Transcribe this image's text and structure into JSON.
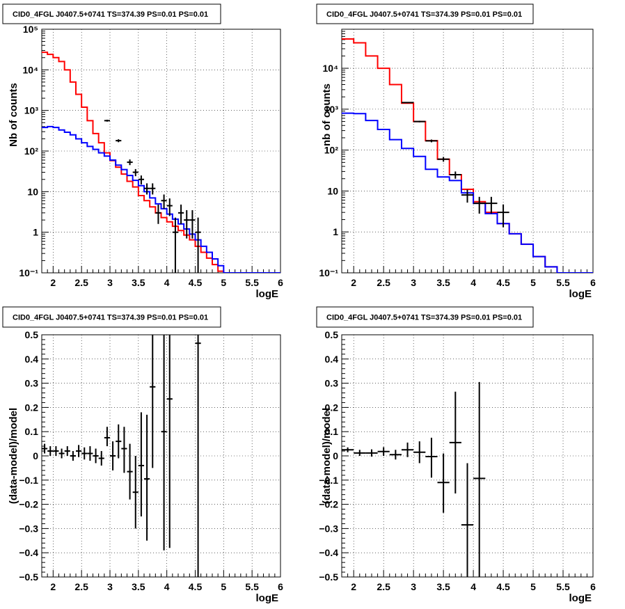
{
  "colors": {
    "model": "#ff0000",
    "background": "#0000ff",
    "data": "#000000"
  },
  "chart_data": [
    {
      "type": "line",
      "scale": "log",
      "title": "CID0_4FGL J0407.5+0741 TS=374.39 PS=0.01 PS=0.01",
      "xlabel": "logE",
      "ylabel": "Nb of counts",
      "xlim": [
        1.8,
        6
      ],
      "ylim": [
        0.1,
        100000
      ],
      "grid": true,
      "x_ticks": [
        "2",
        "2.5",
        "3",
        "3.5",
        "4",
        "4.5",
        "5",
        "5.5",
        "6"
      ],
      "y_ticks": [
        "10⁻¹",
        "1",
        "10",
        "10²",
        "10³",
        "10⁴",
        "10⁵"
      ],
      "bin_edges": [
        1.8,
        1.9,
        2.0,
        2.1,
        2.2,
        2.3,
        2.4,
        2.5,
        2.6,
        2.7,
        2.8,
        2.9,
        3.0,
        3.1,
        3.2,
        3.3,
        3.4,
        3.5,
        3.6,
        3.7,
        3.8,
        3.9,
        4.0,
        4.1,
        4.2,
        4.3,
        4.4,
        4.5,
        4.6,
        4.7,
        4.8,
        4.9,
        5.0,
        5.1,
        5.2,
        5.3,
        5.4,
        5.5,
        5.6,
        5.7,
        5.8,
        5.9,
        6.0
      ],
      "series": [
        {
          "name": "",
          "color": "#ff0000",
          "values": [
            27000,
            24000,
            20000,
            16000,
            10000,
            5000,
            2500,
            1200,
            560,
            270,
            160,
            90,
            58,
            40,
            27,
            18,
            13,
            8,
            6,
            4.2,
            3,
            2.3,
            1.8,
            1.4,
            1.1,
            0.85,
            0.65,
            0.45,
            0.32,
            0.23,
            0.16,
            0.11,
            0.1,
            0.1,
            0.1,
            0.1,
            0.1,
            0.1,
            0.1,
            0.1,
            0.1,
            0.1
          ]
        },
        {
          "name": "",
          "color": "#0000ff",
          "values": [
            380,
            400,
            380,
            330,
            290,
            250,
            200,
            160,
            130,
            110,
            90,
            75,
            60,
            45,
            35,
            25,
            19,
            14,
            10,
            7,
            5,
            3.8,
            2.8,
            2.1,
            1.6,
            1.2,
            0.9,
            0.65,
            0.45,
            0.32,
            0.22,
            0.15,
            0.1,
            0.1,
            0.1,
            0.1,
            0.1,
            0.1,
            0.1,
            0.1,
            0.1,
            0.1
          ]
        }
      ],
      "data_points": [
        {
          "x": 2.95,
          "y": 560,
          "xerr": 0.05,
          "ylo": 530,
          "yhi": 590
        },
        {
          "x": 3.15,
          "y": 180,
          "xerr": 0.05,
          "ylo": 165,
          "yhi": 195
        },
        {
          "x": 3.35,
          "y": 53,
          "xerr": 0.05,
          "ylo": 45,
          "yhi": 62
        },
        {
          "x": 3.45,
          "y": 30,
          "xerr": 0.05,
          "ylo": 24,
          "yhi": 36
        },
        {
          "x": 3.55,
          "y": 20,
          "xerr": 0.05,
          "ylo": 15,
          "yhi": 25
        },
        {
          "x": 3.65,
          "y": 12,
          "xerr": 0.05,
          "ylo": 8.5,
          "yhi": 16
        },
        {
          "x": 3.75,
          "y": 12,
          "xerr": 0.05,
          "ylo": 8.5,
          "yhi": 16
        },
        {
          "x": 3.85,
          "y": 3,
          "xerr": 0.05,
          "ylo": 1.6,
          "yhi": 4.8
        },
        {
          "x": 3.95,
          "y": 6,
          "xerr": 0.05,
          "ylo": 3.8,
          "yhi": 8.5
        },
        {
          "x": 4.05,
          "y": 4.5,
          "xerr": 0.05,
          "ylo": 2.5,
          "yhi": 6.8
        },
        {
          "x": 4.15,
          "y": 1,
          "xerr": 0.05,
          "ylo": 0.1,
          "yhi": 2.3
        },
        {
          "x": 4.25,
          "y": 3,
          "xerr": 0.05,
          "ylo": 1.6,
          "yhi": 4.8
        },
        {
          "x": 4.35,
          "y": 2,
          "xerr": 0.05,
          "ylo": 0.7,
          "yhi": 3.5
        },
        {
          "x": 4.45,
          "y": 2,
          "xerr": 0.05,
          "ylo": 0.7,
          "yhi": 3.5
        },
        {
          "x": 4.55,
          "y": 1,
          "xerr": 0.05,
          "ylo": 0.1,
          "yhi": 2.3
        }
      ]
    },
    {
      "type": "line",
      "scale": "log",
      "title": "CID0_4FGL J0407.5+0741 TS=374.39 PS=0.01 PS=0.01",
      "xlabel": "logE",
      "ylabel": "nb of counts",
      "xlim": [
        1.8,
        6
      ],
      "ylim": [
        0.1,
        90000
      ],
      "grid": true,
      "x_ticks": [
        "2",
        "2.5",
        "3",
        "3.5",
        "4",
        "4.5",
        "5",
        "5.5",
        "6"
      ],
      "y_ticks": [
        "10⁻¹",
        "1",
        "10",
        "10²",
        "10³",
        "10⁴"
      ],
      "bin_edges": [
        1.8,
        2.0,
        2.2,
        2.4,
        2.6,
        2.8,
        3.0,
        3.2,
        3.4,
        3.6,
        3.8,
        4.0,
        4.2,
        4.4,
        4.6,
        4.8,
        5.0,
        5.2,
        5.4,
        5.6,
        5.8,
        6.0
      ],
      "series": [
        {
          "name": "",
          "color": "#ff0000",
          "values": [
            52000,
            42000,
            20000,
            10000,
            4000,
            1400,
            500,
            170,
            60,
            25,
            11,
            5.5,
            3,
            1.6,
            0.9,
            0.5,
            0.25,
            0.14,
            0.1,
            0.1,
            0.1
          ]
        },
        {
          "name": "",
          "color": "#0000ff",
          "values": [
            800,
            780,
            530,
            320,
            180,
            110,
            70,
            34,
            22,
            18,
            9,
            5,
            2.8,
            1.6,
            0.9,
            0.5,
            0.25,
            0.14,
            0.1,
            0.1,
            0.1
          ]
        }
      ],
      "data_points": [
        {
          "x": 2.9,
          "y": 1450,
          "xerr": 0.1,
          "ylo": 1400,
          "yhi": 1500
        },
        {
          "x": 3.1,
          "y": 500,
          "xerr": 0.1,
          "ylo": 478,
          "yhi": 522
        },
        {
          "x": 3.3,
          "y": 168,
          "xerr": 0.1,
          "ylo": 155,
          "yhi": 181
        },
        {
          "x": 3.5,
          "y": 60,
          "xerr": 0.1,
          "ylo": 52,
          "yhi": 68
        },
        {
          "x": 3.7,
          "y": 25,
          "xerr": 0.1,
          "ylo": 20,
          "yhi": 30
        },
        {
          "x": 3.9,
          "y": 8,
          "xerr": 0.1,
          "ylo": 5.2,
          "yhi": 10.8
        },
        {
          "x": 4.1,
          "y": 5,
          "xerr": 0.1,
          "ylo": 2.8,
          "yhi": 7.2
        },
        {
          "x": 4.3,
          "y": 5,
          "xerr": 0.1,
          "ylo": 2.8,
          "yhi": 7.2
        },
        {
          "x": 4.5,
          "y": 3,
          "xerr": 0.1,
          "ylo": 1.3,
          "yhi": 4.7
        }
      ]
    },
    {
      "type": "scatter",
      "scale": "linear",
      "title": "CID0_4FGL J0407.5+0741 TS=374.39 PS=0.01 PS=0.01",
      "xlabel": "logE",
      "ylabel": "(data-model)/model",
      "xlim": [
        1.8,
        6
      ],
      "ylim": [
        -0.5,
        0.5
      ],
      "grid": true,
      "x_ticks": [
        "2",
        "2.5",
        "3",
        "3.5",
        "4",
        "4.5",
        "5",
        "5.5",
        "6"
      ],
      "y_ticks": [
        "−0.5",
        "−0.4",
        "−0.3",
        "−0.2",
        "−0.1",
        "0",
        "0.1",
        "0.2",
        "0.3",
        "0.4",
        "0.5"
      ],
      "data_points": [
        {
          "x": 1.85,
          "y": 0.03,
          "xerr": 0.05,
          "ylo": 0.01,
          "yhi": 0.05
        },
        {
          "x": 1.95,
          "y": 0.02,
          "xerr": 0.05,
          "ylo": 0.0,
          "yhi": 0.04
        },
        {
          "x": 2.05,
          "y": 0.02,
          "xerr": 0.05,
          "ylo": 0.0,
          "yhi": 0.04
        },
        {
          "x": 2.15,
          "y": 0.01,
          "xerr": 0.05,
          "ylo": -0.01,
          "yhi": 0.03
        },
        {
          "x": 2.25,
          "y": 0.02,
          "xerr": 0.05,
          "ylo": 0.0,
          "yhi": 0.04
        },
        {
          "x": 2.35,
          "y": 0.0,
          "xerr": 0.05,
          "ylo": -0.02,
          "yhi": 0.02
        },
        {
          "x": 2.45,
          "y": 0.02,
          "xerr": 0.05,
          "ylo": -0.005,
          "yhi": 0.045
        },
        {
          "x": 2.55,
          "y": 0.01,
          "xerr": 0.05,
          "ylo": -0.015,
          "yhi": 0.035
        },
        {
          "x": 2.65,
          "y": 0.01,
          "xerr": 0.05,
          "ylo": -0.02,
          "yhi": 0.04
        },
        {
          "x": 2.75,
          "y": 0.0,
          "xerr": 0.05,
          "ylo": -0.03,
          "yhi": 0.03
        },
        {
          "x": 2.85,
          "y": -0.01,
          "xerr": 0.05,
          "ylo": -0.04,
          "yhi": 0.02
        },
        {
          "x": 2.95,
          "y": 0.075,
          "xerr": 0.05,
          "ylo": 0.04,
          "yhi": 0.12
        },
        {
          "x": 3.05,
          "y": 0.0,
          "xerr": 0.05,
          "ylo": -0.06,
          "yhi": 0.06
        },
        {
          "x": 3.15,
          "y": 0.06,
          "xerr": 0.05,
          "ylo": -0.01,
          "yhi": 0.13
        },
        {
          "x": 3.25,
          "y": 0.03,
          "xerr": 0.05,
          "ylo": -0.07,
          "yhi": 0.12
        },
        {
          "x": 3.35,
          "y": -0.065,
          "xerr": 0.05,
          "ylo": -0.18,
          "yhi": 0.05
        },
        {
          "x": 3.45,
          "y": -0.15,
          "xerr": 0.05,
          "ylo": -0.3,
          "yhi": 0.0
        },
        {
          "x": 3.55,
          "y": -0.04,
          "xerr": 0.05,
          "ylo": -0.25,
          "yhi": 0.18
        },
        {
          "x": 3.65,
          "y": -0.095,
          "xerr": 0.05,
          "ylo": -0.35,
          "yhi": 0.17
        },
        {
          "x": 3.75,
          "y": 0.285,
          "xerr": 0.05,
          "ylo": -0.05,
          "yhi": 0.5
        },
        {
          "x": 3.95,
          "y": 0.1,
          "xerr": 0.05,
          "ylo": -0.39,
          "yhi": 0.5
        },
        {
          "x": 4.05,
          "y": 0.235,
          "xerr": 0.05,
          "ylo": -0.38,
          "yhi": 0.5
        },
        {
          "x": 4.55,
          "y": 0.465,
          "xerr": 0.05,
          "ylo": -0.5,
          "yhi": 0.5
        }
      ]
    },
    {
      "type": "scatter",
      "scale": "linear",
      "title": "CID0_4FGL J0407.5+0741 TS=374.39 PS=0.01 PS=0.01",
      "xlabel": "logE",
      "ylabel": "(data-model)/model",
      "xlim": [
        1.8,
        6
      ],
      "ylim": [
        -0.5,
        0.5
      ],
      "grid": true,
      "x_ticks": [
        "2",
        "2.5",
        "3",
        "3.5",
        "4",
        "4.5",
        "5",
        "5.5",
        "6"
      ],
      "y_ticks": [
        "−0.5",
        "−0.4",
        "−0.3",
        "−0.2",
        "−0.1",
        "0",
        "0.1",
        "0.2",
        "0.3",
        "0.4",
        "0.5"
      ],
      "data_points": [
        {
          "x": 1.9,
          "y": 0.025,
          "xerr": 0.1,
          "ylo": 0.015,
          "yhi": 0.035
        },
        {
          "x": 2.1,
          "y": 0.012,
          "xerr": 0.1,
          "ylo": 0.0,
          "yhi": 0.025
        },
        {
          "x": 2.3,
          "y": 0.012,
          "xerr": 0.1,
          "ylo": -0.003,
          "yhi": 0.027
        },
        {
          "x": 2.5,
          "y": 0.018,
          "xerr": 0.1,
          "ylo": 0.0,
          "yhi": 0.036
        },
        {
          "x": 2.7,
          "y": 0.005,
          "xerr": 0.1,
          "ylo": -0.015,
          "yhi": 0.025
        },
        {
          "x": 2.9,
          "y": 0.025,
          "xerr": 0.1,
          "ylo": -0.005,
          "yhi": 0.055
        },
        {
          "x": 3.1,
          "y": 0.015,
          "xerr": 0.1,
          "ylo": -0.03,
          "yhi": 0.06
        },
        {
          "x": 3.3,
          "y": -0.003,
          "xerr": 0.1,
          "ylo": -0.09,
          "yhi": 0.075
        },
        {
          "x": 3.5,
          "y": -0.11,
          "xerr": 0.1,
          "ylo": -0.235,
          "yhi": 0.01
        },
        {
          "x": 3.7,
          "y": 0.055,
          "xerr": 0.1,
          "ylo": -0.155,
          "yhi": 0.265
        },
        {
          "x": 3.9,
          "y": -0.285,
          "xerr": 0.1,
          "ylo": -0.5,
          "yhi": -0.03
        },
        {
          "x": 4.1,
          "y": -0.093,
          "xerr": 0.1,
          "ylo": -0.5,
          "yhi": 0.305
        }
      ]
    }
  ]
}
